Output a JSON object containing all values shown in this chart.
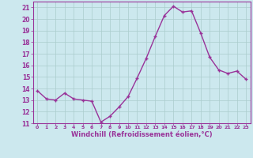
{
  "x": [
    0,
    1,
    2,
    3,
    4,
    5,
    6,
    7,
    8,
    9,
    10,
    11,
    12,
    13,
    14,
    15,
    16,
    17,
    18,
    19,
    20,
    21,
    22,
    23
  ],
  "y": [
    13.8,
    13.1,
    13.0,
    13.6,
    13.1,
    13.0,
    12.9,
    11.1,
    11.6,
    12.4,
    13.3,
    14.9,
    16.6,
    18.5,
    20.3,
    21.1,
    20.6,
    20.7,
    18.8,
    16.7,
    15.6,
    15.3,
    15.5,
    14.8
  ],
  "line_color": "#993399",
  "marker_color": "#993399",
  "bg_color": "#cce8ee",
  "grid_color": "#aacccc",
  "xlabel": "Windchill (Refroidissement éolien,°C)",
  "xlabel_color": "#993399",
  "ylim": [
    11,
    21.5
  ],
  "xlim": [
    -0.5,
    23.5
  ],
  "yticks": [
    11,
    12,
    13,
    14,
    15,
    16,
    17,
    18,
    19,
    20,
    21
  ],
  "xticks": [
    0,
    1,
    2,
    3,
    4,
    5,
    6,
    7,
    8,
    9,
    10,
    11,
    12,
    13,
    14,
    15,
    16,
    17,
    18,
    19,
    20,
    21,
    22,
    23
  ],
  "tick_color": "#993399",
  "tick_label_color": "#993399",
  "line_width": 1.0,
  "marker_size": 3.0,
  "spine_color": "#993399"
}
